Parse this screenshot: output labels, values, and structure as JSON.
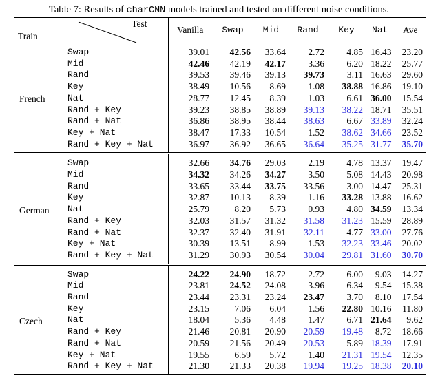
{
  "caption": {
    "prefix": "Table 7: Results of ",
    "model": "charCNN",
    "suffix": " models trained and tested on different noise conditions."
  },
  "header": {
    "test_label": "Test",
    "train_label": "Train",
    "columns": [
      "Vanilla",
      "Swap",
      "Mid",
      "Rand",
      "Key",
      "Nat",
      "Ave"
    ]
  },
  "groups": [
    {
      "language": "French",
      "rows": [
        {
          "train": "Swap",
          "values": [
            "39.01",
            "42.56",
            "33.64",
            "2.72",
            "4.85",
            "16.43",
            "23.20"
          ],
          "bold": [
            1
          ],
          "blue": []
        },
        {
          "train": "Mid",
          "values": [
            "42.46",
            "42.19",
            "42.17",
            "3.36",
            "6.20",
            "18.22",
            "25.77"
          ],
          "bold": [
            0,
            2
          ],
          "blue": []
        },
        {
          "train": "Rand",
          "values": [
            "39.53",
            "39.46",
            "39.13",
            "39.73",
            "3.11",
            "16.63",
            "29.60"
          ],
          "bold": [
            3
          ],
          "blue": []
        },
        {
          "train": "Key",
          "values": [
            "38.49",
            "10.56",
            "8.69",
            "1.08",
            "38.88",
            "16.86",
            "19.10"
          ],
          "bold": [
            4
          ],
          "blue": []
        },
        {
          "train": "Nat",
          "values": [
            "28.77",
            "12.45",
            "8.39",
            "1.03",
            "6.61",
            "36.00",
            "15.54"
          ],
          "bold": [
            5
          ],
          "blue": []
        },
        {
          "train": "Rand + Key",
          "values": [
            "39.23",
            "38.85",
            "38.89",
            "39.13",
            "38.22",
            "18.71",
            "35.51"
          ],
          "bold": [],
          "blue": [
            3,
            4
          ]
        },
        {
          "train": "Rand + Nat",
          "values": [
            "36.86",
            "38.95",
            "38.44",
            "38.63",
            "6.67",
            "33.89",
            "32.24"
          ],
          "bold": [],
          "blue": [
            3,
            5
          ]
        },
        {
          "train": "Key + Nat",
          "values": [
            "38.47",
            "17.33",
            "10.54",
            "1.52",
            "38.62",
            "34.66",
            "23.52"
          ],
          "bold": [],
          "blue": [
            4,
            5
          ]
        },
        {
          "train": "Rand + Key + Nat",
          "values": [
            "36.97",
            "36.92",
            "36.65",
            "36.64",
            "35.25",
            "31.77",
            "35.70"
          ],
          "bold": [
            6
          ],
          "blue": [
            3,
            4,
            5,
            6
          ]
        }
      ]
    },
    {
      "language": "German",
      "rows": [
        {
          "train": "Swap",
          "values": [
            "32.66",
            "34.76",
            "29.03",
            "2.19",
            "4.78",
            "13.37",
            "19.47"
          ],
          "bold": [
            1
          ],
          "blue": []
        },
        {
          "train": "Mid",
          "values": [
            "34.32",
            "34.26",
            "34.27",
            "3.50",
            "5.08",
            "14.43",
            "20.98"
          ],
          "bold": [
            0,
            2
          ],
          "blue": []
        },
        {
          "train": "Rand",
          "values": [
            "33.65",
            "33.44",
            "33.75",
            "33.56",
            "3.00",
            "14.47",
            "25.31"
          ],
          "bold": [
            2
          ],
          "blue": []
        },
        {
          "train": "Key",
          "values": [
            "32.87",
            "10.13",
            "8.39",
            "1.16",
            "33.28",
            "13.88",
            "16.62"
          ],
          "bold": [
            4
          ],
          "blue": []
        },
        {
          "train": "Nat",
          "values": [
            "25.79",
            "8.20",
            "5.73",
            "0.93",
            "4.80",
            "34.59",
            "13.34"
          ],
          "bold": [
            5
          ],
          "blue": []
        },
        {
          "train": "Rand + Key",
          "values": [
            "32.03",
            "31.57",
            "31.32",
            "31.58",
            "31.23",
            "15.59",
            "28.89"
          ],
          "bold": [],
          "blue": [
            3,
            4
          ]
        },
        {
          "train": "Rand + Nat",
          "values": [
            "32.37",
            "32.40",
            "31.91",
            "32.11",
            "4.77",
            "33.00",
            "27.76"
          ],
          "bold": [],
          "blue": [
            3,
            5
          ]
        },
        {
          "train": "Key + Nat",
          "values": [
            "30.39",
            "13.51",
            "8.99",
            "1.53",
            "32.23",
            "33.46",
            "20.02"
          ],
          "bold": [],
          "blue": [
            4,
            5
          ]
        },
        {
          "train": "Rand + Key + Nat",
          "values": [
            "31.29",
            "30.93",
            "30.54",
            "30.04",
            "29.81",
            "31.60",
            "30.70"
          ],
          "bold": [
            6
          ],
          "blue": [
            3,
            4,
            5,
            6
          ]
        }
      ]
    },
    {
      "language": "Czech",
      "rows": [
        {
          "train": "Swap",
          "values": [
            "24.22",
            "24.90",
            "18.72",
            "2.72",
            "6.00",
            "9.03",
            "14.27"
          ],
          "bold": [
            0,
            1
          ],
          "blue": []
        },
        {
          "train": "Mid",
          "values": [
            "23.81",
            "24.52",
            "24.08",
            "3.96",
            "6.34",
            "9.54",
            "15.38"
          ],
          "bold": [
            1
          ],
          "blue": []
        },
        {
          "train": "Rand",
          "values": [
            "23.44",
            "23.31",
            "23.24",
            "23.47",
            "3.70",
            "8.10",
            "17.54"
          ],
          "bold": [
            3
          ],
          "blue": []
        },
        {
          "train": "Key",
          "values": [
            "23.15",
            "7.06",
            "6.04",
            "1.56",
            "22.80",
            "10.16",
            "11.80"
          ],
          "bold": [
            4
          ],
          "blue": []
        },
        {
          "train": "Nat",
          "values": [
            "18.04",
            "5.36",
            "4.48",
            "1.47",
            "6.71",
            "21.64",
            "9.62"
          ],
          "bold": [
            5
          ],
          "blue": []
        },
        {
          "train": "Rand + Key",
          "values": [
            "21.46",
            "20.81",
            "20.90",
            "20.59",
            "19.48",
            "8.72",
            "18.66"
          ],
          "bold": [],
          "blue": [
            3,
            4
          ]
        },
        {
          "train": "Rand + Nat",
          "values": [
            "20.59",
            "21.56",
            "20.49",
            "20.53",
            "5.89",
            "18.39",
            "17.91"
          ],
          "bold": [],
          "blue": [
            3,
            5
          ]
        },
        {
          "train": "Key + Nat",
          "values": [
            "19.55",
            "6.59",
            "5.72",
            "1.40",
            "21.31",
            "19.54",
            "12.35"
          ],
          "bold": [],
          "blue": [
            4,
            5
          ]
        },
        {
          "train": "Rand + Key + Nat",
          "values": [
            "21.30",
            "21.33",
            "20.38",
            "19.94",
            "19.25",
            "18.38",
            "20.10"
          ],
          "bold": [
            6
          ],
          "blue": [
            3,
            4,
            5,
            6
          ]
        }
      ]
    }
  ],
  "colors": {
    "highlight": "#2b2bdd"
  }
}
